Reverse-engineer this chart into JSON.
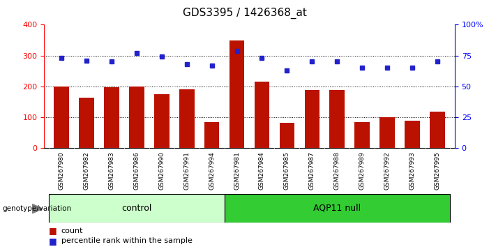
{
  "title": "GDS3395 / 1426368_at",
  "samples": [
    "GSM267980",
    "GSM267982",
    "GSM267983",
    "GSM267986",
    "GSM267990",
    "GSM267991",
    "GSM267994",
    "GSM267981",
    "GSM267984",
    "GSM267985",
    "GSM267987",
    "GSM267988",
    "GSM267989",
    "GSM267992",
    "GSM267993",
    "GSM267995"
  ],
  "counts": [
    200,
    163,
    198,
    200,
    175,
    190,
    85,
    350,
    215,
    82,
    188,
    188,
    85,
    100,
    90,
    118
  ],
  "percentile_ranks": [
    73,
    71,
    70,
    77,
    74,
    68,
    67,
    79,
    73,
    63,
    70,
    70,
    65,
    65,
    65,
    70
  ],
  "group_labels": [
    "control",
    "AQP11 null"
  ],
  "group_split": 7,
  "bar_color": "#bb1100",
  "dot_color": "#2222cc",
  "ylim_left": [
    0,
    400
  ],
  "ylim_right": [
    0,
    100
  ],
  "yticks_left": [
    0,
    100,
    200,
    300,
    400
  ],
  "yticks_right": [
    0,
    25,
    50,
    75,
    100
  ],
  "yticklabels_right": [
    "0",
    "25",
    "50",
    "75",
    "100%"
  ],
  "plot_bg": "#ffffff",
  "tick_area_bg": "#cccccc",
  "ctrl_color": "#ccffcc",
  "aqp_color": "#33cc33",
  "grid_color": "black",
  "bar_width": 0.6
}
